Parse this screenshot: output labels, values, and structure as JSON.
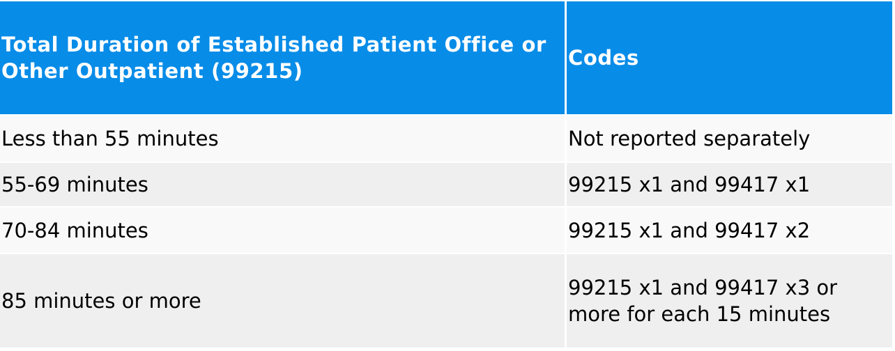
{
  "colors": {
    "header_bg": "#078ce8",
    "row_odd": "#f9f9f9",
    "row_even": "#efefef"
  },
  "table": {
    "headers": [
      "Total Duration of Established Patient Office or Other Outpatient (99215)",
      "Codes"
    ],
    "rows": [
      [
        "Less than 55 minutes",
        "Not reported separately"
      ],
      [
        "55-69 minutes",
        "99215 x1 and 99417 x1"
      ],
      [
        "70-84 minutes",
        "99215 x1 and 99417 x2"
      ],
      [
        "85 minutes or more",
        "99215 x1 and 99417 x3 or more for each 15 minutes"
      ]
    ]
  }
}
